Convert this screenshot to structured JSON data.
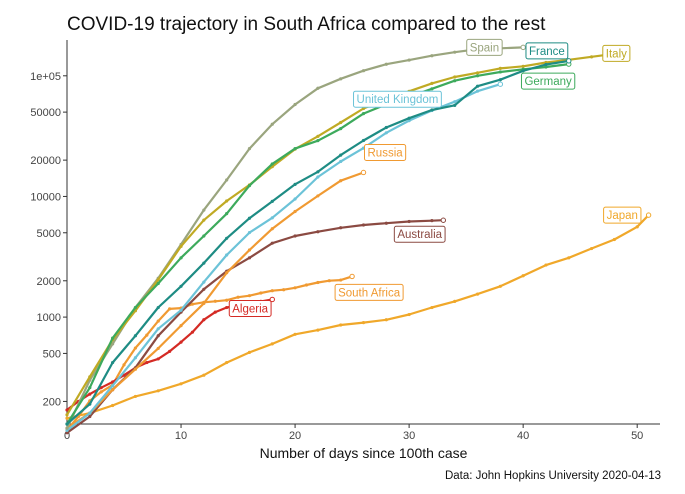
{
  "caption": "Data: John Hopkins University 2020-04-13",
  "chart_data": {
    "type": "line",
    "title": "COVID-19 trajectory in South Africa compared to the rest",
    "xlabel": "Number of days since 100th case",
    "ylabel": "",
    "x_scale": "linear",
    "y_scale": "log",
    "xlim": [
      0,
      52
    ],
    "ylim": [
      130,
      180000
    ],
    "x_ticks": [
      0,
      10,
      20,
      30,
      40,
      50
    ],
    "x_tick_labels": [
      "0",
      "10",
      "20",
      "30",
      "40",
      "50"
    ],
    "y_ticks": [
      200,
      500,
      1000,
      2000,
      5000,
      10000,
      20000,
      50000,
      100000
    ],
    "y_tick_labels": [
      "200",
      "500",
      "1000",
      "2000",
      "5000",
      "10000",
      "20000",
      "50000",
      "1e+05"
    ],
    "grid": false,
    "legend": "direct end-of-line labels",
    "series": [
      {
        "name": "Spain",
        "color": "#9aa57e",
        "x": [
          0,
          2,
          4,
          6,
          8,
          10,
          12,
          14,
          16,
          18,
          20,
          22,
          24,
          26,
          28,
          30,
          32,
          34,
          36,
          38,
          40
        ],
        "values": [
          120,
          300,
          600,
          1200,
          2100,
          4000,
          7700,
          13700,
          24900,
          39700,
          57800,
          78800,
          94400,
          110200,
          124700,
          135000,
          146700,
          157000,
          166000,
          169000,
          172000
        ]
      },
      {
        "name": "France",
        "color": "#1e8c84",
        "x": [
          0,
          2,
          4,
          6,
          8,
          10,
          12,
          14,
          16,
          18,
          20,
          22,
          24,
          26,
          28,
          30,
          32,
          34,
          36,
          38,
          40,
          42,
          44
        ],
        "values": [
          130,
          190,
          420,
          700,
          1200,
          1800,
          2800,
          4500,
          6600,
          9100,
          12600,
          16000,
          22000,
          29100,
          37300,
          44500,
          52100,
          56900,
          82000,
          92800,
          110000,
          124000,
          133000
        ]
      },
      {
        "name": "Italy",
        "color": "#c0aa24",
        "x": [
          0,
          2,
          4,
          6,
          8,
          10,
          12,
          14,
          16,
          18,
          20,
          22,
          24,
          26,
          28,
          30,
          32,
          34,
          36,
          38,
          40,
          42,
          44,
          46,
          48,
          49
        ],
        "values": [
          155,
          320,
          650,
          1130,
          2040,
          3860,
          6360,
          9170,
          12460,
          17660,
          24700,
          31500,
          41000,
          53600,
          63900,
          74400,
          86500,
          97700,
          105800,
          115200,
          119800,
          128900,
          135600,
          143600,
          152300,
          156400
        ]
      },
      {
        "name": "Germany",
        "color": "#3daa5c",
        "x": [
          0,
          2,
          4,
          6,
          8,
          10,
          12,
          14,
          16,
          18,
          20,
          22,
          24,
          26,
          28,
          30,
          32,
          34,
          36,
          38,
          40,
          42,
          44
        ],
        "values": [
          130,
          260,
          670,
          1200,
          1900,
          3100,
          4700,
          7200,
          12300,
          18600,
          24900,
          29000,
          36500,
          48600,
          58000,
          67000,
          78000,
          91000,
          100000,
          107600,
          113300,
          118200,
          125000
        ]
      },
      {
        "name": "United Kingdom",
        "color": "#6cc3d8",
        "x": [
          0,
          2,
          4,
          6,
          8,
          10,
          12,
          14,
          16,
          18,
          20,
          22,
          24,
          26,
          28,
          30,
          32,
          34,
          36,
          38
        ],
        "values": [
          115,
          160,
          270,
          460,
          800,
          1140,
          1950,
          3270,
          5020,
          6650,
          9530,
          14500,
          19500,
          25150,
          33700,
          42500,
          51600,
          61000,
          74600,
          85200
        ]
      },
      {
        "name": "Russia",
        "color": "#f09a32",
        "x": [
          0,
          2,
          4,
          6,
          8,
          10,
          12,
          14,
          16,
          18,
          20,
          22,
          24,
          26
        ],
        "values": [
          120,
          160,
          250,
          370,
          550,
          850,
          1300,
          2330,
          3600,
          5400,
          7500,
          10100,
          13500,
          15800
        ]
      },
      {
        "name": "Australia",
        "color": "#8b4a42",
        "x": [
          0,
          2,
          4,
          6,
          8,
          10,
          12,
          14,
          16,
          18,
          20,
          22,
          24,
          26,
          28,
          30,
          32,
          33
        ],
        "values": [
          110,
          150,
          250,
          380,
          700,
          1100,
          1700,
          2400,
          3100,
          4100,
          4700,
          5100,
          5500,
          5800,
          6000,
          6200,
          6300,
          6350
        ]
      },
      {
        "name": "South Africa",
        "color": "#f09a32",
        "x": [
          0,
          1,
          2,
          3,
          4,
          5,
          6,
          7,
          8,
          9,
          10,
          11,
          12,
          13,
          14,
          15,
          16,
          17,
          18,
          19,
          20,
          21,
          22,
          23,
          24,
          25
        ],
        "values": [
          116,
          150,
          202,
          240,
          274,
          402,
          554,
          709,
          927,
          1170,
          1187,
          1280,
          1326,
          1353,
          1380,
          1462,
          1505,
          1585,
          1655,
          1686,
          1749,
          1845,
          1934,
          2003,
          2028,
          2173
        ]
      },
      {
        "name": "Algeria",
        "color": "#d42a24",
        "x": [
          0,
          1,
          2,
          3,
          4,
          5,
          6,
          7,
          8,
          9,
          10,
          11,
          12,
          13,
          14,
          15,
          16,
          17,
          18
        ],
        "values": [
          170,
          200,
          230,
          260,
          290,
          330,
          380,
          420,
          450,
          520,
          620,
          750,
          950,
          1100,
          1200,
          1250,
          1300,
          1350,
          1400
        ]
      },
      {
        "name": "Japan",
        "color": "#f0a82a",
        "x": [
          0,
          2,
          4,
          6,
          8,
          10,
          12,
          14,
          16,
          18,
          20,
          22,
          24,
          26,
          28,
          30,
          32,
          34,
          36,
          38,
          40,
          42,
          44,
          46,
          48,
          50,
          51
        ],
        "values": [
          145,
          160,
          185,
          220,
          245,
          280,
          330,
          420,
          510,
          600,
          720,
          780,
          860,
          900,
          950,
          1050,
          1200,
          1350,
          1550,
          1800,
          2200,
          2700,
          3100,
          3700,
          4400,
          5600,
          7000
        ]
      }
    ]
  }
}
